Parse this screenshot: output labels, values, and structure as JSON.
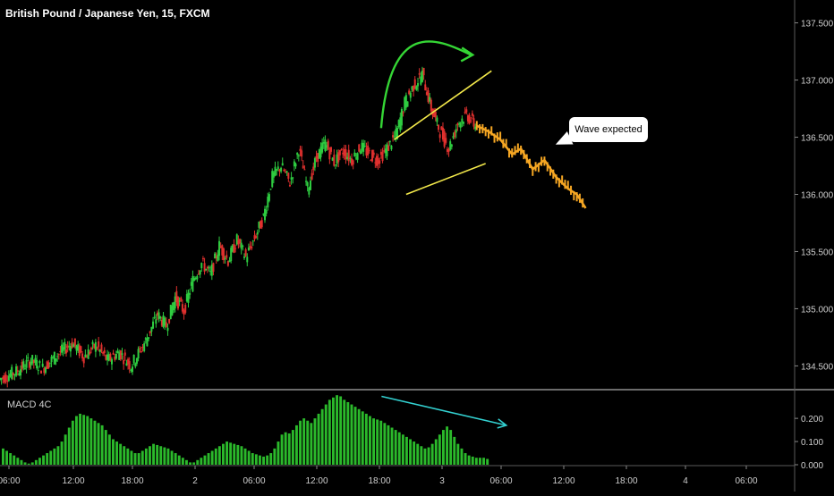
{
  "header": {
    "title": "British Pound / Japanese Yen, 15, FXCM"
  },
  "annotation": {
    "text": "Wave expected"
  },
  "macd": {
    "label": "MACD 4C"
  },
  "colors": {
    "background": "#000000",
    "up": "#2ecc40",
    "down": "#e0302e",
    "projection": "#f5a623",
    "wedge": "#f2e84a",
    "arc": "#35d635",
    "macd_bar": "#2bb92b",
    "divergence": "#33d1d1",
    "axis_text": "#cfcfcf"
  },
  "chart_data": [
    {
      "type": "candlestick",
      "title": "British Pound / Japanese Yen, 15, FXCM",
      "y_ticks": [
        "137.500",
        "137.000",
        "136.500",
        "136.000",
        "135.500",
        "135.000",
        "134.500"
      ],
      "ylim": [
        134.3,
        137.7
      ],
      "x_ticks": [
        "06:00",
        "12:00",
        "18:00",
        "2",
        "06:00",
        "12:00",
        "18:00",
        "3",
        "06:00",
        "12:00",
        "18:00",
        "4",
        "06:00"
      ],
      "price_path": [
        [
          0,
          134.38
        ],
        [
          12,
          134.45
        ],
        [
          22,
          134.55
        ],
        [
          30,
          134.48
        ],
        [
          40,
          134.6
        ],
        [
          50,
          134.7
        ],
        [
          58,
          134.58
        ],
        [
          66,
          134.68
        ],
        [
          74,
          134.55
        ],
        [
          82,
          134.62
        ],
        [
          90,
          134.5
        ],
        [
          100,
          134.72
        ],
        [
          108,
          134.95
        ],
        [
          114,
          134.85
        ],
        [
          120,
          135.1
        ],
        [
          126,
          134.98
        ],
        [
          132,
          135.25
        ],
        [
          138,
          135.4
        ],
        [
          144,
          135.3
        ],
        [
          150,
          135.55
        ],
        [
          156,
          135.42
        ],
        [
          162,
          135.6
        ],
        [
          168,
          135.45
        ],
        [
          174,
          135.62
        ],
        [
          180,
          135.8
        ],
        [
          186,
          136.15
        ],
        [
          192,
          136.25
        ],
        [
          198,
          136.1
        ],
        [
          204,
          136.4
        ],
        [
          210,
          136.05
        ],
        [
          216,
          136.32
        ],
        [
          222,
          136.45
        ],
        [
          228,
          136.28
        ],
        [
          234,
          136.38
        ],
        [
          240,
          136.3
        ],
        [
          246,
          136.42
        ],
        [
          252,
          136.35
        ],
        [
          258,
          136.3
        ],
        [
          264,
          136.4
        ],
        [
          270,
          136.52
        ],
        [
          276,
          136.8
        ],
        [
          282,
          136.95
        ],
        [
          288,
          137.05
        ],
        [
          294,
          136.75
        ],
        [
          300,
          136.55
        ],
        [
          306,
          136.4
        ],
        [
          312,
          136.62
        ],
        [
          318,
          136.7
        ],
        [
          324,
          136.6
        ]
      ],
      "projection_path": [
        [
          324,
          136.6
        ],
        [
          332,
          136.55
        ],
        [
          340,
          136.48
        ],
        [
          348,
          136.35
        ],
        [
          354,
          136.4
        ],
        [
          362,
          136.22
        ],
        [
          370,
          136.3
        ],
        [
          378,
          136.15
        ],
        [
          386,
          136.05
        ],
        [
          392,
          136.0
        ],
        [
          398,
          135.88
        ]
      ],
      "wedge_upper": [
        [
          268,
          136.48
        ],
        [
          334,
          137.08
        ]
      ],
      "wedge_lower": [
        [
          276,
          136.0
        ],
        [
          330,
          136.27
        ]
      ],
      "curved_arrow": [
        [
          259,
          136.58
        ],
        [
          320,
          137.22
        ]
      ]
    },
    {
      "type": "bar",
      "title": "MACD 4C",
      "y_ticks": [
        "0.200",
        "0.100",
        "0.000"
      ],
      "ylim": [
        0,
        0.32
      ],
      "values": [
        0.07,
        0.06,
        0.05,
        0.04,
        0.03,
        0.02,
        0.01,
        0.005,
        0.01,
        0.02,
        0.03,
        0.04,
        0.05,
        0.06,
        0.07,
        0.08,
        0.1,
        0.13,
        0.16,
        0.19,
        0.21,
        0.22,
        0.215,
        0.21,
        0.2,
        0.19,
        0.18,
        0.17,
        0.15,
        0.13,
        0.11,
        0.1,
        0.09,
        0.08,
        0.07,
        0.06,
        0.05,
        0.05,
        0.06,
        0.07,
        0.08,
        0.09,
        0.085,
        0.08,
        0.075,
        0.07,
        0.06,
        0.05,
        0.04,
        0.03,
        0.02,
        0.01,
        0.01,
        0.02,
        0.03,
        0.04,
        0.05,
        0.06,
        0.07,
        0.08,
        0.09,
        0.1,
        0.095,
        0.09,
        0.085,
        0.08,
        0.07,
        0.06,
        0.05,
        0.045,
        0.04,
        0.035,
        0.04,
        0.05,
        0.07,
        0.1,
        0.13,
        0.14,
        0.135,
        0.15,
        0.17,
        0.19,
        0.2,
        0.19,
        0.18,
        0.2,
        0.22,
        0.24,
        0.26,
        0.28,
        0.29,
        0.3,
        0.295,
        0.28,
        0.27,
        0.26,
        0.25,
        0.24,
        0.23,
        0.22,
        0.21,
        0.2,
        0.195,
        0.19,
        0.18,
        0.17,
        0.16,
        0.15,
        0.14,
        0.13,
        0.12,
        0.11,
        0.1,
        0.09,
        0.08,
        0.07,
        0.075,
        0.09,
        0.11,
        0.13,
        0.15,
        0.165,
        0.15,
        0.12,
        0.09,
        0.07,
        0.05,
        0.04,
        0.035,
        0.03,
        0.03,
        0.03,
        0.025
      ],
      "divergence_line": [
        [
          103,
          0.295
        ],
        [
          137,
          0.17
        ]
      ]
    }
  ]
}
